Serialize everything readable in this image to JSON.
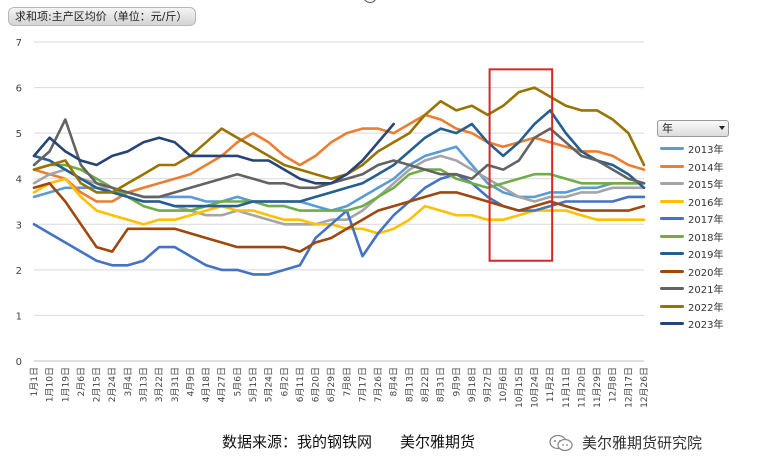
{
  "field_button": {
    "label": "求和项:主产区均价（单位：元/斤）"
  },
  "legend_header": {
    "label": "年"
  },
  "footer": {
    "source_label": "数据来源：我的钢铁网",
    "brand": "美尔雅期货"
  },
  "watermark": {
    "text": "美尔雅期货研究院"
  },
  "chart_data": {
    "type": "line",
    "ylim": [
      0,
      7
    ],
    "yticks": [
      0,
      1,
      2,
      3,
      4,
      5,
      6,
      7
    ],
    "xlabels": [
      "1月1日",
      "1月10日",
      "1月19日",
      "2月6日",
      "2月15日",
      "2月24日",
      "3月4日",
      "3月13日",
      "3月22日",
      "3月31日",
      "4月9日",
      "4月18日",
      "4月27日",
      "5月6日",
      "5月15日",
      "5月24日",
      "6月2日",
      "6月11日",
      "6月20日",
      "6月29日",
      "7月8日",
      "7月17日",
      "7月26日",
      "8月4日",
      "8月13日",
      "8月22日",
      "8月31日",
      "9月9日",
      "9月18日",
      "9月27日",
      "10月6日",
      "10月15日",
      "10月24日",
      "11月2日",
      "11月11日",
      "11月20日",
      "11月29日",
      "12月8日",
      "12月17日",
      "12月26日"
    ],
    "grid": true,
    "legend_position": "right",
    "highlight_box": {
      "x_from": "9月27日",
      "x_to": "11月2日",
      "y_from": 2.2,
      "y_to": 6.4,
      "color": "#d62728"
    },
    "series": [
      {
        "name": "2013年",
        "color": "#5b9bd5",
        "values": [
          3.6,
          3.7,
          3.8,
          3.8,
          3.8,
          3.7,
          3.7,
          3.6,
          3.6,
          3.6,
          3.6,
          3.5,
          3.5,
          3.6,
          3.5,
          3.5,
          3.5,
          3.5,
          3.4,
          3.3,
          3.4,
          3.6,
          3.8,
          4.0,
          4.3,
          4.5,
          4.6,
          4.7,
          4.3,
          3.9,
          3.7,
          3.6,
          3.6,
          3.7,
          3.7,
          3.8,
          3.8,
          3.9,
          3.9,
          3.9
        ]
      },
      {
        "name": "2014年",
        "color": "#ed7d31",
        "values": [
          4.2,
          4.1,
          4.0,
          3.7,
          3.5,
          3.5,
          3.7,
          3.8,
          3.9,
          4.0,
          4.1,
          4.3,
          4.5,
          4.8,
          5.0,
          4.8,
          4.5,
          4.3,
          4.5,
          4.8,
          5.0,
          5.1,
          5.1,
          5.0,
          5.2,
          5.4,
          5.3,
          5.1,
          5.0,
          4.8,
          4.7,
          4.8,
          4.9,
          4.8,
          4.7,
          4.6,
          4.6,
          4.5,
          4.3,
          4.2
        ]
      },
      {
        "name": "2015年",
        "color": "#a5a5a5",
        "values": [
          3.9,
          4.1,
          4.2,
          4.0,
          3.9,
          3.7,
          3.6,
          3.5,
          3.5,
          3.4,
          3.3,
          3.2,
          3.2,
          3.3,
          3.2,
          3.1,
          3.0,
          3.0,
          3.0,
          3.1,
          3.1,
          3.3,
          3.6,
          3.9,
          4.2,
          4.4,
          4.5,
          4.4,
          4.2,
          4.0,
          3.8,
          3.6,
          3.5,
          3.6,
          3.6,
          3.7,
          3.7,
          3.8,
          3.8,
          3.8
        ]
      },
      {
        "name": "2016年",
        "color": "#ffc000",
        "values": [
          3.7,
          3.9,
          4.0,
          3.6,
          3.3,
          3.2,
          3.1,
          3.0,
          3.1,
          3.1,
          3.2,
          3.3,
          3.4,
          3.3,
          3.3,
          3.2,
          3.1,
          3.1,
          3.0,
          3.0,
          2.9,
          2.9,
          2.8,
          2.9,
          3.1,
          3.4,
          3.3,
          3.2,
          3.2,
          3.1,
          3.1,
          3.2,
          3.3,
          3.3,
          3.3,
          3.2,
          3.1,
          3.1,
          3.1,
          3.1
        ]
      },
      {
        "name": "2017年",
        "color": "#4472c4",
        "values": [
          3.0,
          2.8,
          2.6,
          2.4,
          2.2,
          2.1,
          2.1,
          2.2,
          2.5,
          2.5,
          2.3,
          2.1,
          2.0,
          2.0,
          1.9,
          1.9,
          2.0,
          2.1,
          2.7,
          3.0,
          3.3,
          2.3,
          2.8,
          3.2,
          3.5,
          3.8,
          4.0,
          4.1,
          3.9,
          3.6,
          3.4,
          3.3,
          3.3,
          3.4,
          3.5,
          3.5,
          3.5,
          3.5,
          3.6,
          3.6
        ]
      },
      {
        "name": "2018年",
        "color": "#70ad47",
        "values": [
          4.2,
          4.3,
          4.3,
          4.2,
          4.0,
          3.8,
          3.6,
          3.4,
          3.3,
          3.3,
          3.3,
          3.4,
          3.5,
          3.5,
          3.5,
          3.4,
          3.4,
          3.3,
          3.3,
          3.3,
          3.3,
          3.4,
          3.6,
          3.8,
          4.1,
          4.2,
          4.2,
          4.0,
          3.9,
          3.8,
          3.9,
          4.0,
          4.1,
          4.1,
          4.0,
          3.9,
          3.9,
          3.9,
          3.9,
          3.9
        ]
      },
      {
        "name": "2019年",
        "color": "#255e91",
        "values": [
          4.5,
          4.4,
          4.2,
          4.0,
          3.8,
          3.7,
          3.6,
          3.5,
          3.5,
          3.4,
          3.4,
          3.4,
          3.4,
          3.4,
          3.5,
          3.5,
          3.5,
          3.5,
          3.6,
          3.7,
          3.8,
          3.9,
          4.1,
          4.3,
          4.6,
          4.9,
          5.1,
          5.0,
          5.2,
          4.8,
          4.5,
          4.8,
          5.2,
          5.5,
          5.0,
          4.6,
          4.4,
          4.3,
          4.1,
          3.8
        ]
      },
      {
        "name": "2020年",
        "color": "#9e480e",
        "values": [
          3.8,
          3.9,
          3.5,
          3.0,
          2.5,
          2.4,
          2.9,
          2.9,
          2.9,
          2.9,
          2.8,
          2.7,
          2.6,
          2.5,
          2.5,
          2.5,
          2.5,
          2.4,
          2.6,
          2.7,
          2.9,
          3.1,
          3.3,
          3.4,
          3.5,
          3.6,
          3.7,
          3.7,
          3.6,
          3.5,
          3.4,
          3.3,
          3.4,
          3.5,
          3.4,
          3.3,
          3.3,
          3.3,
          3.3,
          3.4
        ]
      },
      {
        "name": "2021年",
        "color": "#636363",
        "values": [
          4.3,
          4.6,
          5.3,
          4.3,
          3.9,
          3.8,
          3.7,
          3.6,
          3.6,
          3.7,
          3.8,
          3.9,
          4.0,
          4.1,
          4.0,
          3.9,
          3.9,
          3.8,
          3.8,
          3.9,
          4.0,
          4.1,
          4.3,
          4.4,
          4.3,
          4.2,
          4.1,
          4.1,
          4.0,
          4.3,
          4.2,
          4.4,
          4.9,
          5.1,
          4.8,
          4.5,
          4.4,
          4.2,
          4.0,
          3.9
        ]
      },
      {
        "name": "2022年",
        "color": "#997300",
        "values": [
          4.2,
          4.3,
          4.4,
          3.9,
          3.7,
          3.7,
          3.9,
          4.1,
          4.3,
          4.3,
          4.5,
          4.8,
          5.1,
          4.9,
          4.7,
          4.5,
          4.3,
          4.2,
          4.1,
          4.0,
          4.1,
          4.3,
          4.6,
          4.8,
          5.0,
          5.4,
          5.7,
          5.5,
          5.6,
          5.4,
          5.6,
          5.9,
          6.0,
          5.8,
          5.6,
          5.5,
          5.5,
          5.3,
          5.0,
          4.3
        ]
      },
      {
        "name": "2023年",
        "color": "#264478",
        "values": [
          4.5,
          4.9,
          4.6,
          4.4,
          4.3,
          4.5,
          4.6,
          4.8,
          4.9,
          4.8,
          4.5,
          4.5,
          4.5,
          4.5,
          4.4,
          4.4,
          4.2,
          4.0,
          3.9,
          3.9,
          4.1,
          4.4,
          4.8,
          5.2,
          null,
          null,
          null,
          null,
          null,
          null,
          null,
          null,
          null,
          null,
          null,
          null,
          null,
          null,
          null,
          null
        ]
      }
    ]
  }
}
